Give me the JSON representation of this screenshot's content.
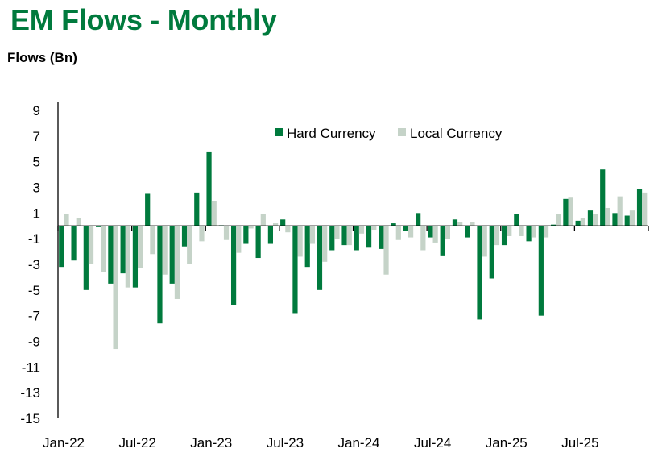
{
  "header": {
    "title": "EM Flows - Monthly",
    "y_axis_title": "Flows (Bn)"
  },
  "chart_data": {
    "type": "bar",
    "title": "EM Flows - Monthly",
    "xlabel": "",
    "ylabel": "Flows (Bn)",
    "ylim": [
      -15,
      9
    ],
    "yticks": [
      9,
      7,
      5,
      3,
      1,
      -1,
      -3,
      -5,
      -7,
      -9,
      -11,
      -13,
      -15
    ],
    "xtick_labels": [
      "Jan-22",
      "Jul-22",
      "Jan-23",
      "Jul-23",
      "Jan-24",
      "Jul-24",
      "Jan-25",
      "Jul-25"
    ],
    "xtick_every_n_months": 6,
    "grid": false,
    "legend": {
      "position": "top-center",
      "entries": [
        "Hard Currency",
        "Local Currency"
      ]
    },
    "categories": [
      "Jan-22",
      "Feb-22",
      "Mar-22",
      "Apr-22",
      "May-22",
      "Jun-22",
      "Jul-22",
      "Aug-22",
      "Sep-22",
      "Oct-22",
      "Nov-22",
      "Dec-22",
      "Jan-23",
      "Feb-23",
      "Mar-23",
      "Apr-23",
      "May-23",
      "Jun-23",
      "Jul-23",
      "Aug-23",
      "Sep-23",
      "Oct-23",
      "Nov-23",
      "Dec-23",
      "Jan-24",
      "Feb-24",
      "Mar-24",
      "Apr-24",
      "May-24",
      "Jun-24",
      "Jul-24",
      "Aug-24",
      "Sep-24",
      "Oct-24",
      "Nov-24",
      "Dec-24",
      "Jan-25",
      "Feb-25",
      "Mar-25",
      "Apr-25",
      "May-25",
      "Jun-25",
      "Jul-25",
      "Aug-25",
      "Sep-25",
      "Oct-25",
      "Nov-25",
      "Dec-25"
    ],
    "series": [
      {
        "name": "Hard Currency",
        "color": "#007a3d",
        "values": [
          -3.2,
          -2.7,
          -5.0,
          -0.1,
          -4.5,
          -3.7,
          -4.8,
          2.5,
          -7.6,
          -4.5,
          -1.6,
          2.6,
          5.8,
          0.05,
          -6.2,
          -1.4,
          -2.5,
          -1.4,
          0.5,
          -6.8,
          -3.2,
          -5.0,
          -1.9,
          -1.5,
          -1.9,
          -1.7,
          -1.8,
          0.2,
          -0.4,
          1.0,
          -0.9,
          -2.3,
          0.5,
          -0.9,
          -7.3,
          -4.1,
          -1.5,
          0.9,
          -1.2,
          -7.0,
          0.1,
          2.1,
          0.4,
          1.2,
          4.4,
          1.0,
          0.8,
          2.9
        ]
      },
      {
        "name": "Local Currency",
        "color": "#c5d3c8",
        "values": [
          0.9,
          0.6,
          -3.0,
          -3.6,
          -9.6,
          -4.8,
          -3.3,
          -2.2,
          -3.8,
          -5.7,
          -3.0,
          -1.2,
          1.9,
          -1.1,
          -2.1,
          -0.2,
          0.9,
          0.2,
          -0.5,
          -2.4,
          -1.4,
          -2.8,
          -1.0,
          -1.5,
          -0.6,
          -0.3,
          -3.8,
          -1.1,
          -0.9,
          -1.9,
          -1.3,
          -1.0,
          0.3,
          0.3,
          -2.4,
          -1.5,
          -0.8,
          -0.8,
          -0.9,
          -0.9,
          0.9,
          2.2,
          0.6,
          0.9,
          1.4,
          2.3,
          1.2,
          2.6
        ]
      }
    ]
  }
}
